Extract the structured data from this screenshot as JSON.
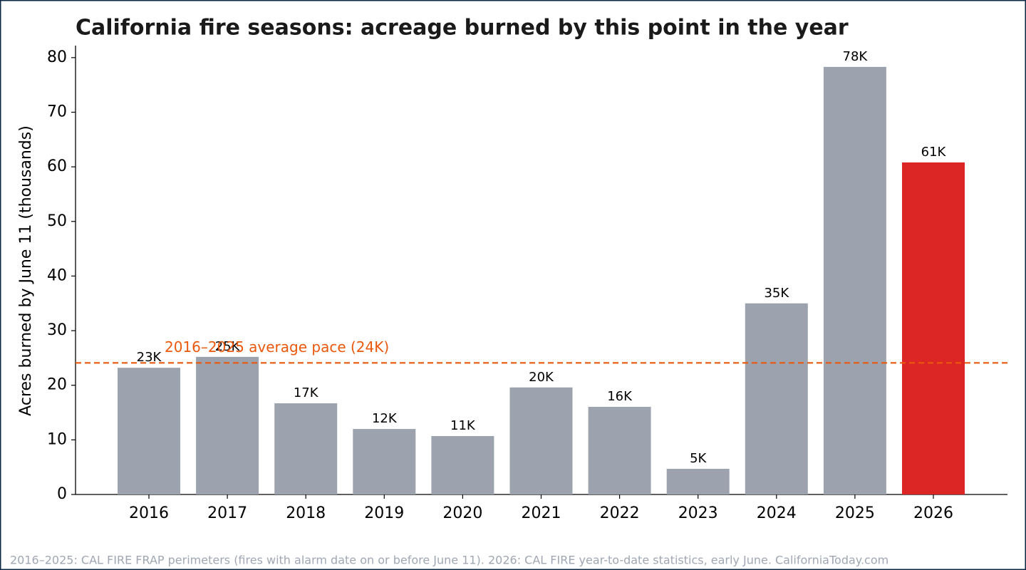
{
  "chart_data": {
    "type": "bar",
    "title": "California fire seasons: acreage burned by this point in the year",
    "y_label": "Acres burned by June 11 (thousands)",
    "categories": [
      "2016",
      "2017",
      "2018",
      "2019",
      "2020",
      "2021",
      "2022",
      "2023",
      "2024",
      "2025",
      "2026"
    ],
    "values": [
      23.2,
      25.2,
      16.7,
      12.0,
      10.7,
      19.6,
      16.05,
      4.7,
      35.0,
      78.3,
      60.8
    ],
    "value_labels": [
      "23K",
      "25K",
      "17K",
      "12K",
      "11K",
      "20K",
      "16K",
      "5K",
      "35K",
      "78K",
      "61K"
    ],
    "colors": [
      "#9ca3ae",
      "#9ca3ae",
      "#9ca3ae",
      "#9ca3ae",
      "#9ca3ae",
      "#9ca3ae",
      "#9ca3ae",
      "#9ca3ae",
      "#9ca3ae",
      "#9ca3ae",
      "#dc2626"
    ],
    "reference_line": {
      "value": 24.1,
      "label": "2016–2025 average pace (24K)",
      "color": "#ea580c"
    },
    "ylim": [
      0,
      82.2
    ],
    "yticks": [
      0,
      10,
      20,
      30,
      40,
      50,
      60,
      70,
      80
    ],
    "note": "2016–2025: CAL FIRE FRAP perimeters (fires with alarm date on or before June 11). 2026: CAL FIRE year-to-date statistics, early June. CaliforniaToday.com"
  }
}
